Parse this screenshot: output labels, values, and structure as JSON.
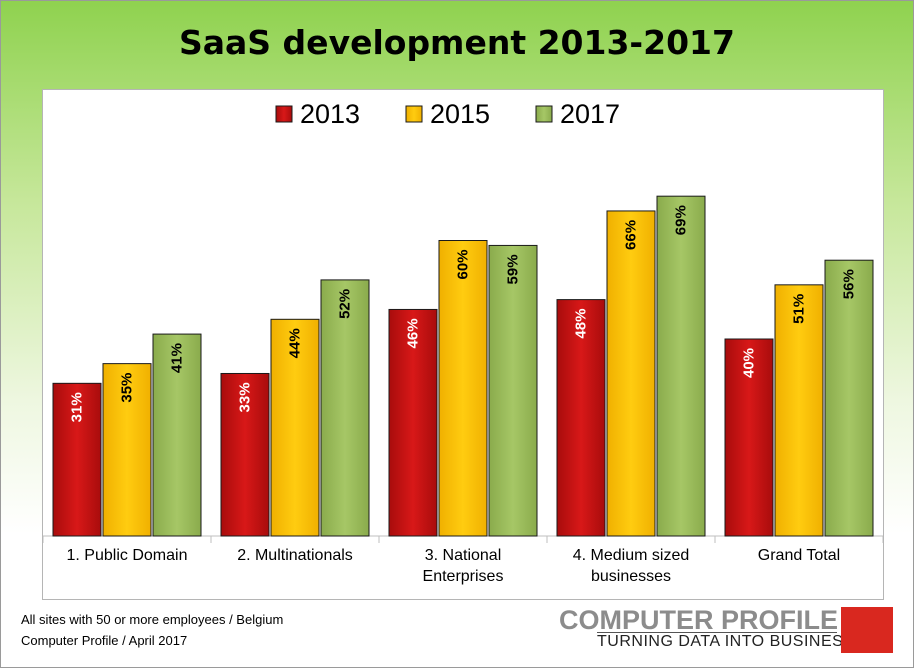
{
  "chart_data": {
    "type": "bar",
    "title": "SaaS development 2013-2017",
    "categories": [
      [
        "1. Public Domain"
      ],
      [
        "2. Multinationals"
      ],
      [
        "3. National",
        "Enterprises"
      ],
      [
        "4. Medium sized",
        "businesses"
      ],
      [
        "Grand Total"
      ]
    ],
    "series": [
      {
        "name": "2013",
        "color": "#cc1414",
        "values": [
          31,
          33,
          46,
          48,
          40
        ],
        "labels": [
          "31%",
          "33%",
          "46%",
          "48%",
          "40%"
        ]
      },
      {
        "name": "2015",
        "color": "#ffc000",
        "values": [
          35,
          44,
          60,
          66,
          51
        ],
        "labels": [
          "35%",
          "44%",
          "60%",
          "66%",
          "51%"
        ]
      },
      {
        "name": "2017",
        "color": "#9bbb59",
        "values": [
          41,
          52,
          59,
          69,
          56
        ],
        "labels": [
          "41%",
          "52%",
          "59%",
          "69%",
          "56%"
        ]
      }
    ],
    "ylim": [
      0,
      80
    ],
    "legend_position": "top-center",
    "grid": false
  },
  "footer": {
    "line1": "All sites with 50 or more employees / Belgium",
    "line2": "Computer Profile / April 2017"
  },
  "logo": {
    "name": "COMPUTER PROFILE",
    "tagline": "TURNING DATA INTO BUSINESS",
    "color": "#d9281f"
  }
}
